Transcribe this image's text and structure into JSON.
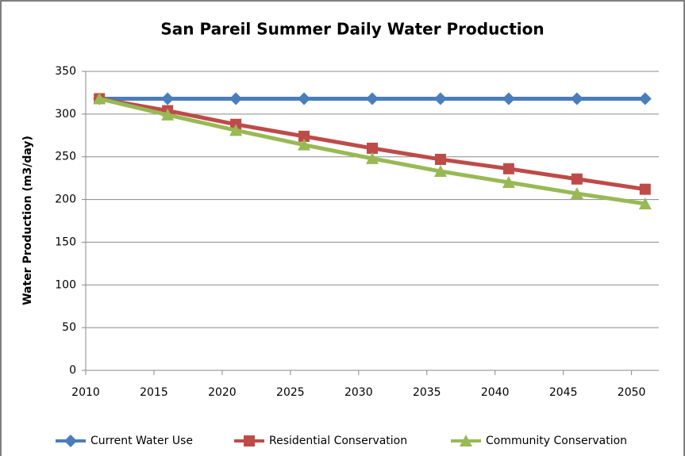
{
  "chart_data": {
    "type": "line",
    "title": "San Pareil Summer Daily Water Production",
    "y_label": "Water Production (m3/day)",
    "x": [
      2011,
      2016,
      2021,
      2026,
      2031,
      2036,
      2041,
      2046,
      2051
    ],
    "series": [
      {
        "name": "Current Water Use",
        "color": "#4a7ebb",
        "marker": "diamond",
        "values": [
          318,
          318,
          318,
          318,
          318,
          318,
          318,
          318,
          318
        ]
      },
      {
        "name": "Residential Conservation",
        "color": "#be4b48",
        "marker": "square",
        "values": [
          318,
          304,
          288,
          274,
          260,
          247,
          236,
          224,
          212
        ]
      },
      {
        "name": "Community Conservation",
        "color": "#98b954",
        "marker": "triangle",
        "values": [
          318,
          299,
          281,
          264,
          248,
          233,
          220,
          207,
          195
        ]
      }
    ],
    "xlim": [
      2010,
      2052
    ],
    "xticks": [
      2010,
      2015,
      2020,
      2025,
      2030,
      2035,
      2040,
      2045,
      2050
    ],
    "ylim": [
      0,
      350
    ],
    "yticks": [
      0,
      50,
      100,
      150,
      200,
      250,
      300,
      350
    ],
    "grid": true,
    "legend": "bottom"
  }
}
